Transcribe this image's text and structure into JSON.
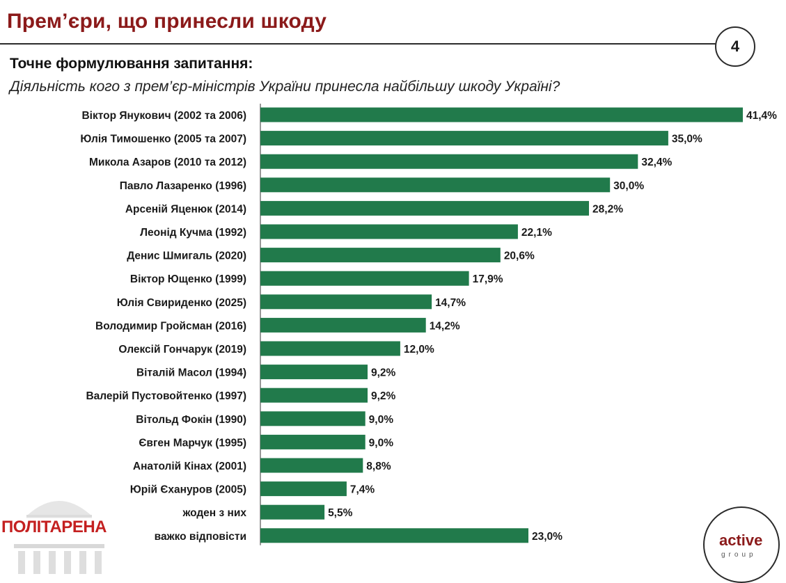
{
  "slide": {
    "title": "Прем’єри, що принесли шкоду",
    "page_number": "4",
    "question_heading": "Точне формулювання запитання:",
    "question_text": "Діяльність кого з прем’єр-міністрів України принесла найбільшу шкоду Україні?"
  },
  "logos": {
    "left_text": "ПОЛІТАРЕНА",
    "right_word": "active",
    "right_sub": "group"
  },
  "colors": {
    "bar": "#217a4b",
    "title": "#8b1a1a",
    "left_logo": "#c42020"
  },
  "chart_data": {
    "type": "bar",
    "orientation": "horizontal",
    "categories": [
      "Віктор Янукович (2002 та 2006)",
      "Юлія Тимошенко (2005 та 2007)",
      "Микола Азаров (2010 та 2012)",
      "Павло Лазаренко (1996)",
      "Арсеній Яценюк (2014)",
      "Леонід Кучма (1992)",
      "Денис Шмигаль (2020)",
      "Віктор Ющенко (1999)",
      "Юлія Свириденко (2025)",
      "Володимир Гройсман (2016)",
      "Олексій Гончарук (2019)",
      "Віталій Масол (1994)",
      "Валерій Пустовойтенко (1997)",
      "Вітольд Фокін (1990)",
      "Євген Марчук (1995)",
      "Анатолій Кінах (2001)",
      "Юрій Єхануров (2005)",
      "жоден з них",
      "важко відповісти"
    ],
    "values": [
      41.4,
      35.0,
      32.4,
      30.0,
      28.2,
      22.1,
      20.6,
      17.9,
      14.7,
      14.2,
      12.0,
      9.2,
      9.2,
      9.0,
      9.0,
      8.8,
      7.4,
      5.5,
      23.0
    ],
    "value_labels": [
      "41,4%",
      "35,0%",
      "32,4%",
      "30,0%",
      "28,2%",
      "22,1%",
      "20,6%",
      "17,9%",
      "14,7%",
      "14,2%",
      "12,0%",
      "9,2%",
      "9,2%",
      "9,0%",
      "9,0%",
      "8,8%",
      "7,4%",
      "5,5%",
      "23,0%"
    ],
    "xlim": [
      0,
      41.4
    ],
    "grid": false,
    "legend": "none"
  }
}
